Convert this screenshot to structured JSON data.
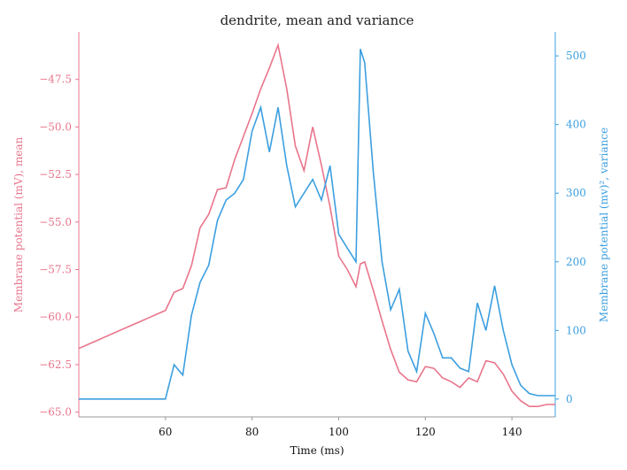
{
  "chart_data": {
    "type": "line",
    "title": "dendrite, mean and variance",
    "x_label": "Time (ms)",
    "y_label": "Membrane potential (mV), mean",
    "y2_label": "Membrane potential (mv)², variance",
    "x": [
      40,
      42,
      44,
      46,
      48,
      50,
      52,
      54,
      56,
      58,
      60,
      62,
      64,
      66,
      68,
      70,
      72,
      74,
      76,
      78,
      80,
      82,
      84,
      86,
      88,
      90,
      92,
      94,
      96,
      98,
      100,
      102,
      104,
      105,
      106,
      108,
      110,
      112,
      114,
      116,
      118,
      120,
      122,
      124,
      126,
      128,
      130,
      132,
      134,
      136,
      138,
      140,
      142,
      144,
      146,
      148,
      150
    ],
    "series": [
      {
        "name": "mean",
        "color": "#e9758c",
        "values": [
          -61.65,
          -61.45,
          -61.25,
          -61.05,
          -60.85,
          -60.65,
          -60.45,
          -60.25,
          -60.05,
          -59.85,
          -59.65,
          -58.7,
          -58.5,
          -57.3,
          -55.3,
          -54.6,
          -53.3,
          -53.2,
          -51.7,
          -50.5,
          -49.3,
          -48.0,
          -46.9,
          -45.7,
          -48.0,
          -51.0,
          -52.3,
          -50.0,
          -52.0,
          -54.2,
          -56.8,
          -57.5,
          -58.4,
          -57.2,
          -57.1,
          -58.6,
          -60.2,
          -61.7,
          -62.9,
          -63.3,
          -63.4,
          -62.6,
          -62.7,
          -63.2,
          -63.4,
          -63.7,
          -63.2,
          -63.4,
          -62.3,
          -62.4,
          -63.0,
          -63.9,
          -64.4,
          -64.7,
          -64.7,
          -64.6,
          -64.6
        ]
      },
      {
        "name": "variance",
        "color": "#3c9fe0",
        "axis": "y2",
        "values": [
          0,
          0,
          0,
          0,
          0,
          0,
          0,
          0,
          0,
          0,
          0,
          50,
          35,
          122,
          170,
          195,
          260,
          290,
          300,
          320,
          390,
          425,
          360,
          425,
          340,
          280,
          300,
          320,
          290,
          340,
          240,
          220,
          200,
          510,
          490,
          330,
          200,
          130,
          160,
          70,
          40,
          125,
          95,
          60,
          60,
          45,
          40,
          140,
          100,
          165,
          100,
          50,
          20,
          8,
          5,
          5,
          5
        ]
      }
    ],
    "xlim": [
      40,
      150
    ],
    "xticks": [
      60,
      80,
      100,
      120,
      140
    ],
    "ylim": [
      -65.25,
      -45
    ],
    "yticks": [
      {
        "value": -65,
        "label": "−65.0"
      },
      {
        "value": -62.5,
        "label": "−62.5"
      },
      {
        "value": -60,
        "label": "−60.0"
      },
      {
        "value": -57.5,
        "label": "−57.5"
      },
      {
        "value": -55,
        "label": "−55.0"
      },
      {
        "value": -52.5,
        "label": "−52.5"
      },
      {
        "value": -50,
        "label": "−50.0"
      },
      {
        "value": -47.5,
        "label": "−47.5"
      }
    ],
    "y2lim": [
      -26,
      535
    ],
    "y2ticks": [
      0,
      100,
      200,
      300,
      400,
      500
    ]
  }
}
